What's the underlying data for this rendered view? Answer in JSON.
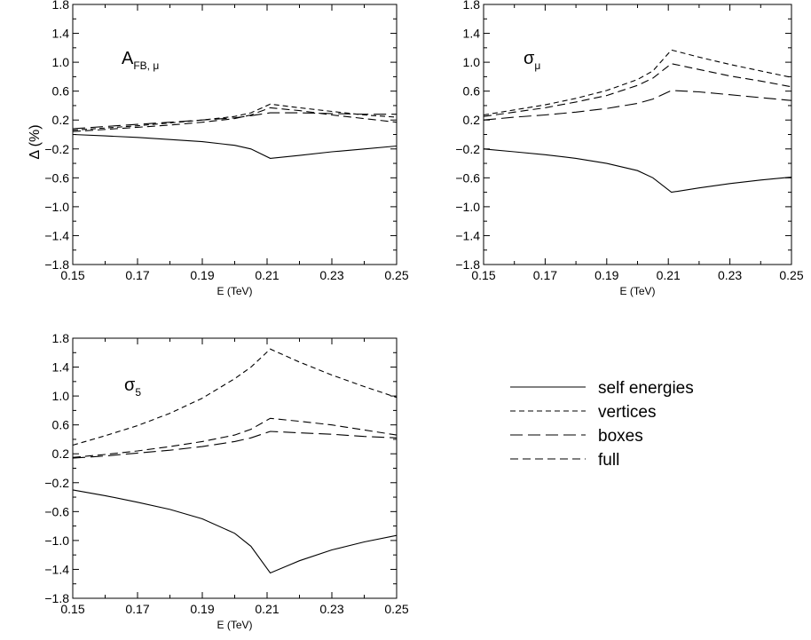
{
  "figure": {
    "ylabel": "Δ (%)",
    "legend": [
      {
        "key": "self",
        "label": "self energies",
        "dash": "none"
      },
      {
        "key": "vertices",
        "label": "vertices",
        "dash": "6,4"
      },
      {
        "key": "boxes",
        "label": "boxes",
        "dash": "14,6"
      },
      {
        "key": "full",
        "label": "full",
        "dash": "9,5"
      }
    ]
  },
  "chart_data": [
    {
      "type": "line",
      "title_main": "A",
      "title_sub": "FB, μ",
      "xlabel": "E (TeV)",
      "xlim": [
        0.15,
        0.25
      ],
      "ylim": [
        -1.8,
        1.8
      ],
      "xticks": [
        "0.15",
        "0.17",
        "0.19",
        "0.21",
        "0.23",
        "0.25"
      ],
      "yticks": [
        "-1.8",
        "-1.4",
        "-1.0",
        "-0.6",
        "-0.2",
        "0.2",
        "0.6",
        "1.0",
        "1.4",
        "1.8"
      ],
      "x": [
        0.15,
        0.16,
        0.17,
        0.18,
        0.19,
        0.2,
        0.205,
        0.211,
        0.22,
        0.23,
        0.24,
        0.25
      ],
      "series": [
        {
          "key": "self",
          "values": [
            0.0,
            -0.02,
            -0.04,
            -0.07,
            -0.1,
            -0.15,
            -0.2,
            -0.33,
            -0.29,
            -0.24,
            -0.2,
            -0.16
          ]
        },
        {
          "key": "vertices",
          "values": [
            0.06,
            0.09,
            0.12,
            0.16,
            0.2,
            0.25,
            0.3,
            0.42,
            0.37,
            0.32,
            0.27,
            0.24
          ]
        },
        {
          "key": "boxes",
          "values": [
            0.08,
            0.11,
            0.14,
            0.17,
            0.2,
            0.23,
            0.26,
            0.3,
            0.3,
            0.29,
            0.28,
            0.28
          ]
        },
        {
          "key": "full",
          "values": [
            0.04,
            0.07,
            0.1,
            0.13,
            0.17,
            0.22,
            0.27,
            0.37,
            0.33,
            0.27,
            0.22,
            0.17
          ]
        }
      ]
    },
    {
      "type": "line",
      "title_main": "σ",
      "title_sub": "μ",
      "xlabel": "E (TeV)",
      "xlim": [
        0.15,
        0.25
      ],
      "ylim": [
        -1.8,
        1.8
      ],
      "xticks": [
        "0.15",
        "0.17",
        "0.19",
        "0.21",
        "0.23",
        "0.25"
      ],
      "yticks": [
        "-1.8",
        "-1.4",
        "-1.0",
        "-0.6",
        "-0.2",
        "0.2",
        "0.6",
        "1.0",
        "1.4",
        "1.8"
      ],
      "x": [
        0.15,
        0.16,
        0.17,
        0.18,
        0.19,
        0.2,
        0.205,
        0.211,
        0.22,
        0.23,
        0.24,
        0.25
      ],
      "series": [
        {
          "key": "self",
          "values": [
            -0.2,
            -0.24,
            -0.28,
            -0.33,
            -0.4,
            -0.5,
            -0.6,
            -0.8,
            -0.74,
            -0.68,
            -0.63,
            -0.59
          ]
        },
        {
          "key": "vertices",
          "values": [
            0.27,
            0.34,
            0.41,
            0.5,
            0.61,
            0.76,
            0.88,
            1.17,
            1.07,
            0.97,
            0.88,
            0.79
          ]
        },
        {
          "key": "boxes",
          "values": [
            0.2,
            0.24,
            0.27,
            0.31,
            0.36,
            0.43,
            0.49,
            0.61,
            0.59,
            0.55,
            0.51,
            0.47
          ]
        },
        {
          "key": "full",
          "values": [
            0.25,
            0.31,
            0.37,
            0.45,
            0.54,
            0.68,
            0.78,
            0.98,
            0.9,
            0.81,
            0.74,
            0.66
          ]
        }
      ]
    },
    {
      "type": "line",
      "title_main": "σ",
      "title_sub": "5",
      "xlabel": "E (TeV)",
      "xlim": [
        0.15,
        0.25
      ],
      "ylim": [
        -1.8,
        1.8
      ],
      "xticks": [
        "0.15",
        "0.17",
        "0.19",
        "0.21",
        "0.23",
        "0.25"
      ],
      "yticks": [
        "-1.8",
        "-1.4",
        "-1.0",
        "-0.6",
        "-0.2",
        "0.2",
        "0.6",
        "1.0",
        "1.4",
        "1.8"
      ],
      "x": [
        0.15,
        0.16,
        0.17,
        0.18,
        0.19,
        0.2,
        0.205,
        0.211,
        0.22,
        0.23,
        0.24,
        0.25
      ],
      "series": [
        {
          "key": "self",
          "values": [
            -0.3,
            -0.38,
            -0.47,
            -0.57,
            -0.7,
            -0.9,
            -1.08,
            -1.45,
            -1.28,
            -1.13,
            -1.02,
            -0.93
          ]
        },
        {
          "key": "vertices",
          "values": [
            0.32,
            0.45,
            0.59,
            0.76,
            0.97,
            1.24,
            1.4,
            1.65,
            1.47,
            1.29,
            1.13,
            0.98
          ]
        },
        {
          "key": "boxes",
          "values": [
            0.14,
            0.17,
            0.21,
            0.25,
            0.3,
            0.37,
            0.42,
            0.51,
            0.49,
            0.47,
            0.44,
            0.42
          ]
        },
        {
          "key": "full",
          "values": [
            0.15,
            0.19,
            0.24,
            0.3,
            0.37,
            0.46,
            0.54,
            0.69,
            0.65,
            0.6,
            0.53,
            0.46
          ]
        }
      ]
    }
  ]
}
